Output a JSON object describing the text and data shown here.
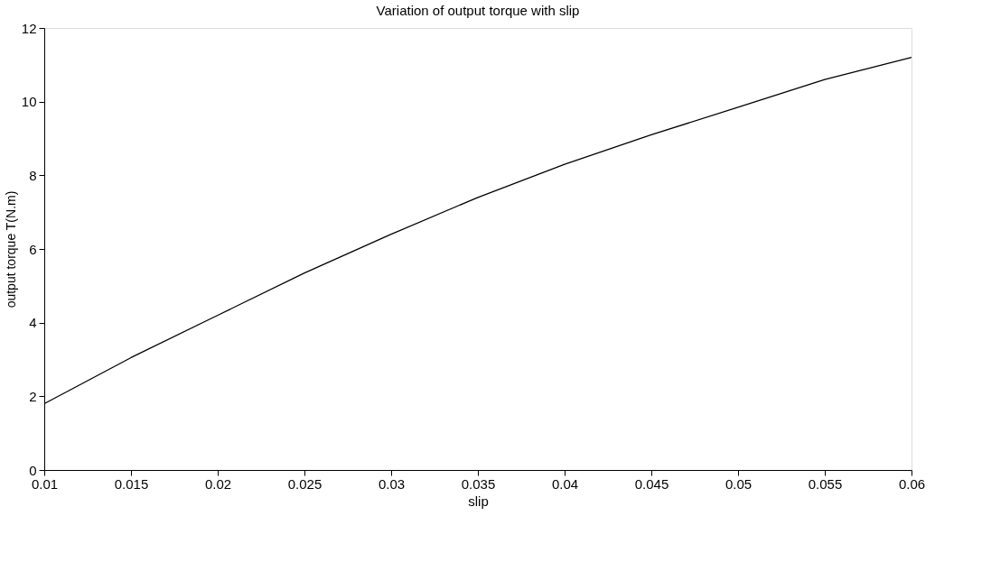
{
  "chart_data": {
    "type": "line",
    "title": "Variation of output torque with slip",
    "xlabel": "slip",
    "ylabel": "output torque T(N.m)",
    "x": [
      0.01,
      0.015,
      0.02,
      0.025,
      0.03,
      0.035,
      0.04,
      0.045,
      0.05,
      0.055,
      0.06
    ],
    "series": [
      {
        "color": "#000000",
        "values": [
          1.8,
          3.05,
          4.2,
          5.35,
          6.4,
          7.4,
          8.3,
          9.1,
          9.85,
          10.6,
          11.2
        ]
      }
    ],
    "xlim": [
      0.01,
      0.06
    ],
    "xticks": [
      0.01,
      0.015,
      0.02,
      0.025,
      0.03,
      0.035,
      0.04,
      0.045,
      0.05,
      0.055,
      0.06
    ],
    "ylim": [
      0,
      12
    ],
    "yticks": [
      0,
      2,
      4,
      6,
      8,
      10,
      12
    ],
    "grid": false,
    "legend": false,
    "marker": "none",
    "line_style": "solid"
  }
}
